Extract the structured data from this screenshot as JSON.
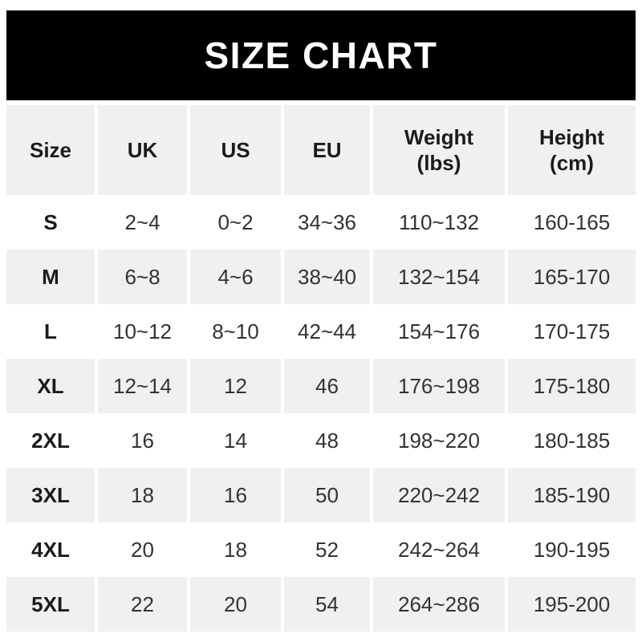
{
  "banner": {
    "title": "SIZE CHART"
  },
  "colors": {
    "banner_bg": "#000000",
    "banner_text": "#ffffff",
    "row_alt_bg": "#f0f0f0",
    "heading_text": "#1b1b1b",
    "body_text": "#333333"
  },
  "table": {
    "headers": [
      {
        "line1": "Size",
        "line2": ""
      },
      {
        "line1": "UK",
        "line2": ""
      },
      {
        "line1": "US",
        "line2": ""
      },
      {
        "line1": "EU",
        "line2": ""
      },
      {
        "line1": "Weight",
        "line2": "(lbs)"
      },
      {
        "line1": "Height",
        "line2": "(cm)"
      }
    ],
    "rows": [
      {
        "size": "S",
        "uk": "2~4",
        "us": "0~2",
        "eu": "34~36",
        "weight": "110~132",
        "height": "160-165"
      },
      {
        "size": "M",
        "uk": "6~8",
        "us": "4~6",
        "eu": "38~40",
        "weight": "132~154",
        "height": "165-170"
      },
      {
        "size": "L",
        "uk": "10~12",
        "us": "8~10",
        "eu": "42~44",
        "weight": "154~176",
        "height": "170-175"
      },
      {
        "size": "XL",
        "uk": "12~14",
        "us": "12",
        "eu": "46",
        "weight": "176~198",
        "height": "175-180"
      },
      {
        "size": "2XL",
        "uk": "16",
        "us": "14",
        "eu": "48",
        "weight": "198~220",
        "height": "180-185"
      },
      {
        "size": "3XL",
        "uk": "18",
        "us": "16",
        "eu": "50",
        "weight": "220~242",
        "height": "185-190"
      },
      {
        "size": "4XL",
        "uk": "20",
        "us": "18",
        "eu": "52",
        "weight": "242~264",
        "height": "190-195"
      },
      {
        "size": "5XL",
        "uk": "22",
        "us": "20",
        "eu": "54",
        "weight": "264~286",
        "height": "195-200"
      }
    ]
  },
  "chart_data": {
    "type": "table",
    "title": "SIZE CHART",
    "columns": [
      "Size",
      "UK",
      "US",
      "EU",
      "Weight (lbs)",
      "Height (cm)"
    ],
    "rows": [
      [
        "S",
        "2~4",
        "0~2",
        "34~36",
        "110~132",
        "160-165"
      ],
      [
        "M",
        "6~8",
        "4~6",
        "38~40",
        "132~154",
        "165-170"
      ],
      [
        "L",
        "10~12",
        "8~10",
        "42~44",
        "154~176",
        "170-175"
      ],
      [
        "XL",
        "12~14",
        "12",
        "46",
        "176~198",
        "175-180"
      ],
      [
        "2XL",
        "16",
        "14",
        "48",
        "198~220",
        "180-185"
      ],
      [
        "3XL",
        "18",
        "16",
        "50",
        "220~242",
        "185-190"
      ],
      [
        "4XL",
        "20",
        "18",
        "52",
        "242~264",
        "190-195"
      ],
      [
        "5XL",
        "22",
        "20",
        "54",
        "264~286",
        "195-200"
      ]
    ],
    "layout": {
      "header_bg": "#f0f0f0",
      "alt_row_bg": "#f0f0f0",
      "banner_bg": "#000000"
    }
  }
}
